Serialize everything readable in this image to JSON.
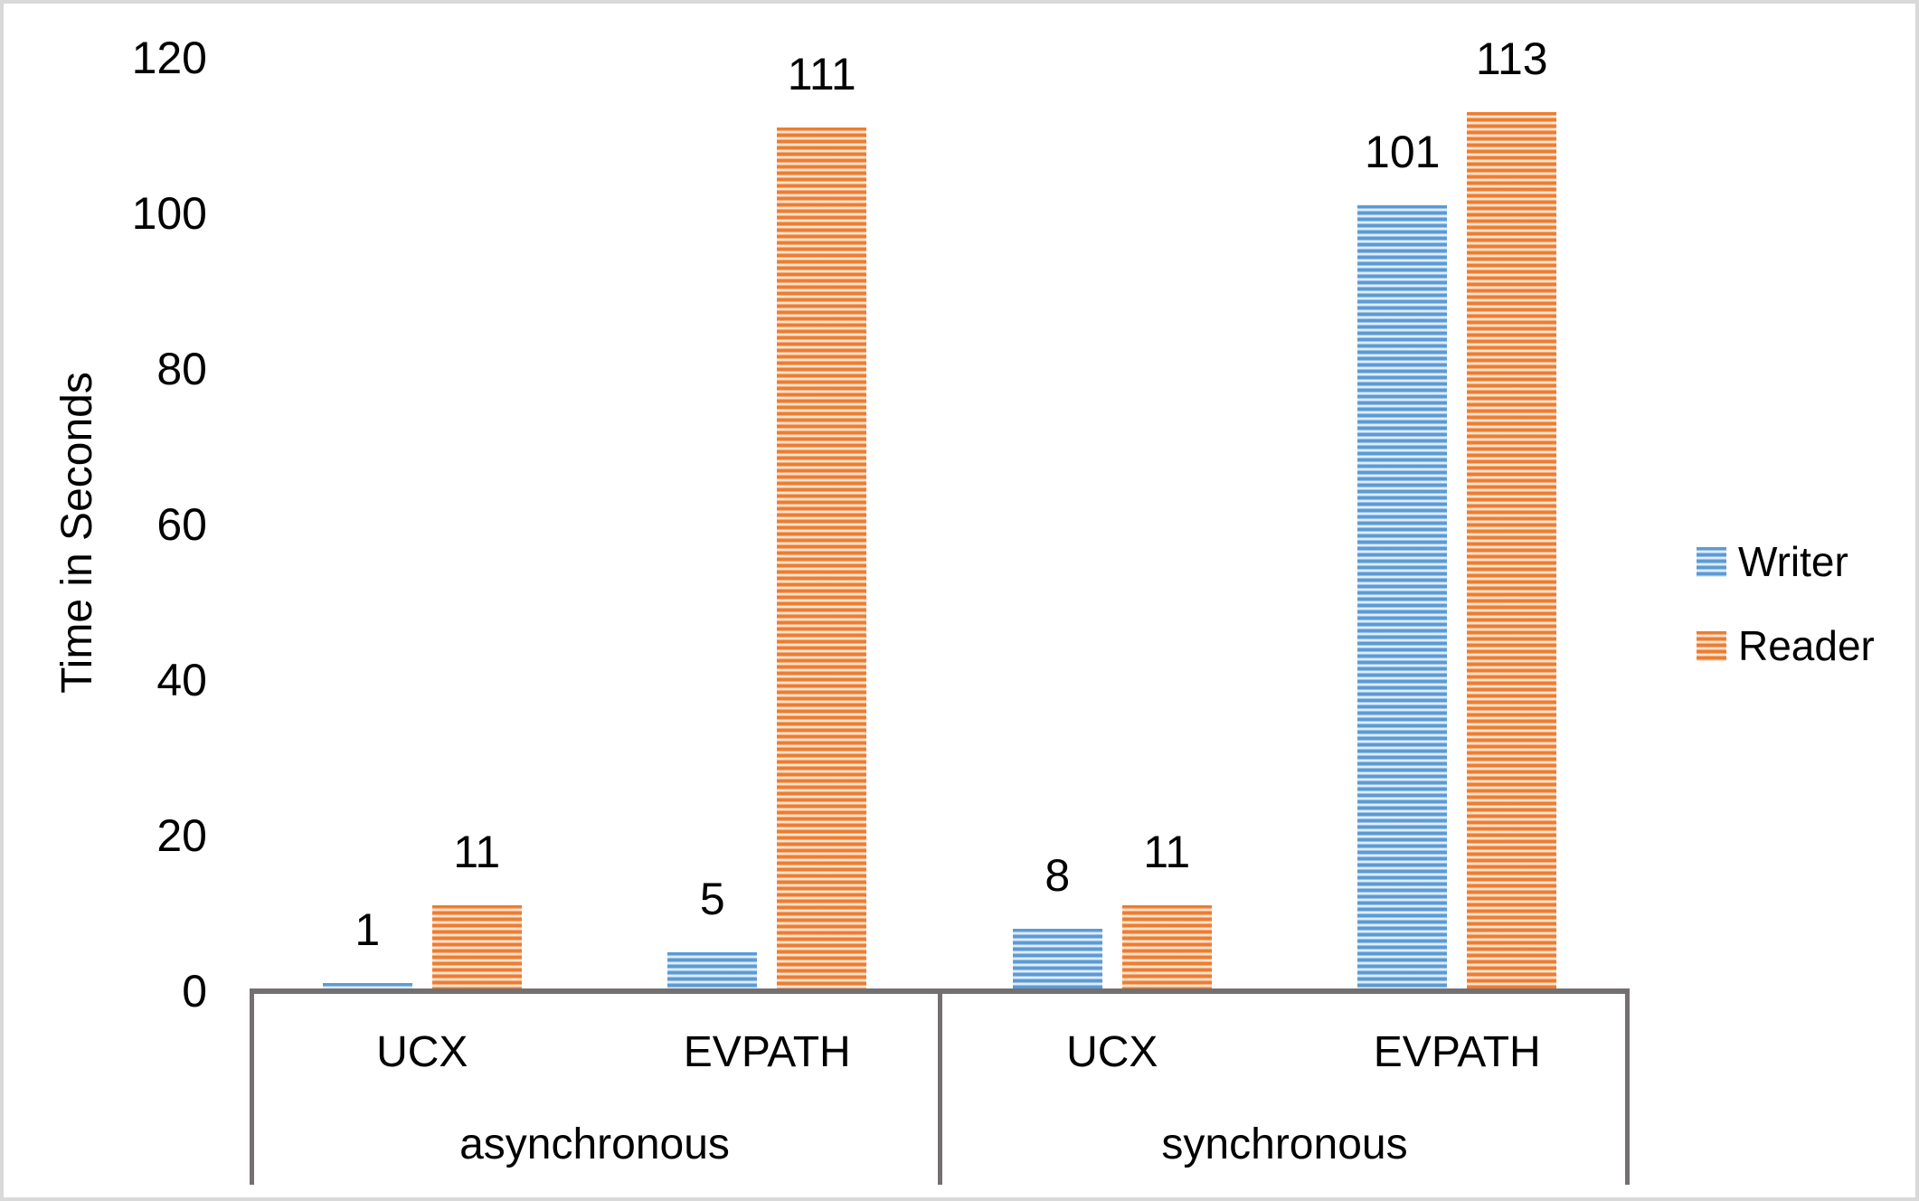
{
  "chart_data": {
    "type": "bar",
    "title": "",
    "ylabel": "Time in Seconds",
    "xlabel": "",
    "ylim": [
      0,
      120
    ],
    "yticks": [
      0,
      20,
      40,
      60,
      80,
      100,
      120
    ],
    "grid": false,
    "legend_position": "right",
    "data_labels": true,
    "groups": [
      {
        "label": "asynchronous",
        "categories": [
          "UCX",
          "EVPATH"
        ]
      },
      {
        "label": "synchronous",
        "categories": [
          "UCX",
          "EVPATH"
        ]
      }
    ],
    "categories": [
      "UCX",
      "EVPATH",
      "UCX",
      "EVPATH"
    ],
    "series": [
      {
        "name": "Writer",
        "color": "#5B9BD5",
        "pattern": "horizontal-stripes",
        "values": [
          1,
          5,
          8,
          101
        ]
      },
      {
        "name": "Reader",
        "color": "#ED7D31",
        "pattern": "horizontal-stripes",
        "values": [
          11,
          111,
          11,
          113
        ]
      }
    ]
  },
  "colors": {
    "writer_accent": "#5B9BD5",
    "writer_stripe_light": "#eef5fc",
    "reader_accent": "#ED7D31",
    "reader_stripe_light": "#fdf0e5",
    "axis_gray": "#757070",
    "frame_border": "#D9D9D9",
    "text": "#000000"
  }
}
